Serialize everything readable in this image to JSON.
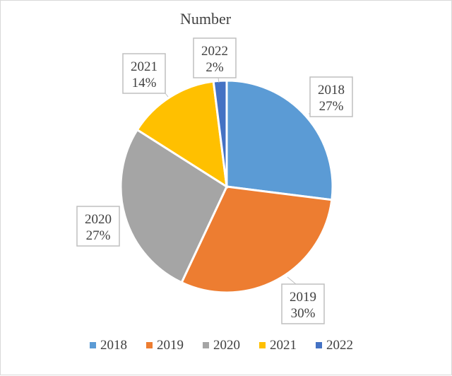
{
  "chart_data": {
    "type": "pie",
    "title": "Number",
    "categories": [
      "2018",
      "2019",
      "2020",
      "2021",
      "2022"
    ],
    "values": [
      27,
      30,
      27,
      14,
      2
    ],
    "data_labels": [
      {
        "year": "2018",
        "pct": "27%"
      },
      {
        "year": "2019",
        "pct": "30%"
      },
      {
        "year": "2020",
        "pct": "27%"
      },
      {
        "year": "2021",
        "pct": "14%"
      },
      {
        "year": "2022",
        "pct": "2%"
      }
    ],
    "colors": [
      "#5b9bd5",
      "#ed7d31",
      "#a5a5a5",
      "#ffc000",
      "#4472c4"
    ],
    "legend_position": "bottom"
  }
}
